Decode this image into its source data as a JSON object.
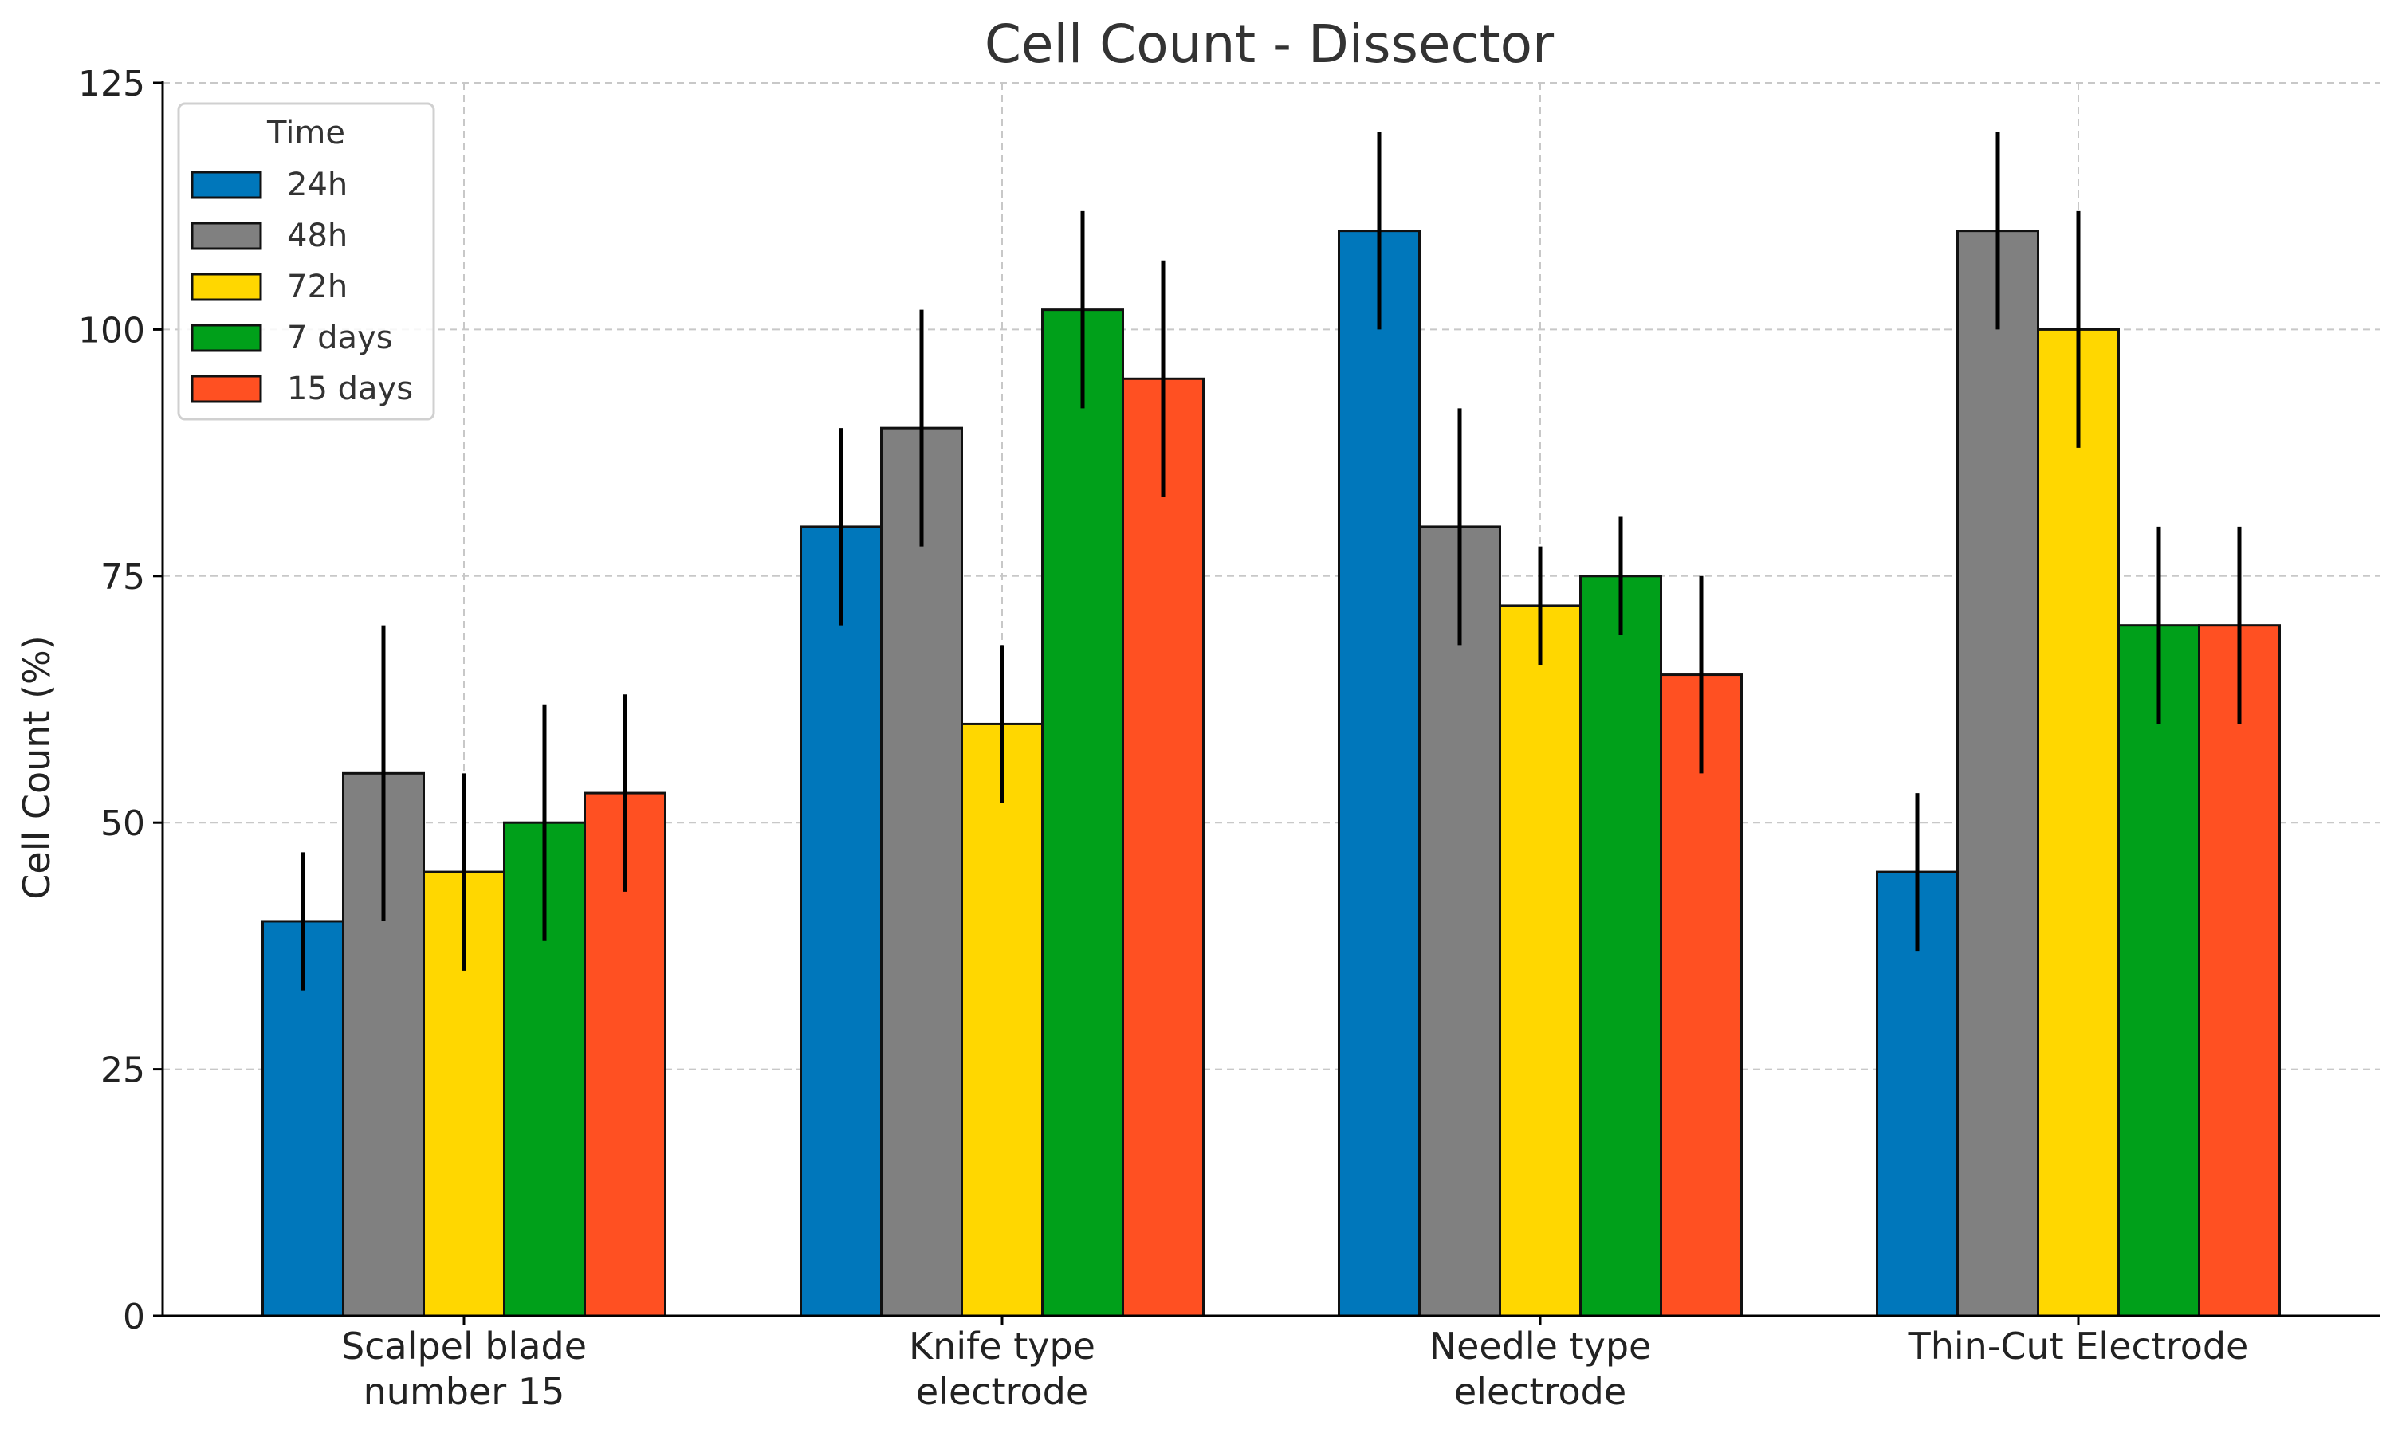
{
  "chart_data": {
    "type": "bar",
    "title": "Cell Count - Dissector",
    "xlabel": "",
    "ylabel": "Cell Count (%)",
    "ylim": [
      0,
      125
    ],
    "yticks": [
      0,
      25,
      50,
      75,
      100,
      125
    ],
    "grid": true,
    "legend_position": "top-left",
    "legend_title": "Time",
    "categories": [
      [
        "Scalpel blade",
        "number 15"
      ],
      [
        "Knife type",
        "electrode"
      ],
      [
        "Needle type",
        "electrode"
      ],
      [
        "Thin-Cut Electrode"
      ]
    ],
    "series": [
      {
        "name": "24h",
        "color": "#0077BB",
        "values": [
          40,
          80,
          110,
          45
        ],
        "errors": [
          7,
          10,
          10,
          8
        ]
      },
      {
        "name": "48h",
        "color": "#808080",
        "values": [
          55,
          90,
          80,
          110
        ],
        "errors": [
          15,
          12,
          12,
          10
        ]
      },
      {
        "name": "72h",
        "color": "#FFD700",
        "values": [
          45,
          60,
          72,
          100
        ],
        "errors": [
          10,
          8,
          6,
          12
        ]
      },
      {
        "name": "7 days",
        "color": "#00A01A",
        "values": [
          50,
          102,
          75,
          70
        ],
        "errors": [
          12,
          10,
          6,
          10
        ]
      },
      {
        "name": "15 days",
        "color": "#FF5022",
        "values": [
          53,
          95,
          65,
          70
        ],
        "errors": [
          10,
          12,
          10,
          10
        ]
      }
    ]
  }
}
